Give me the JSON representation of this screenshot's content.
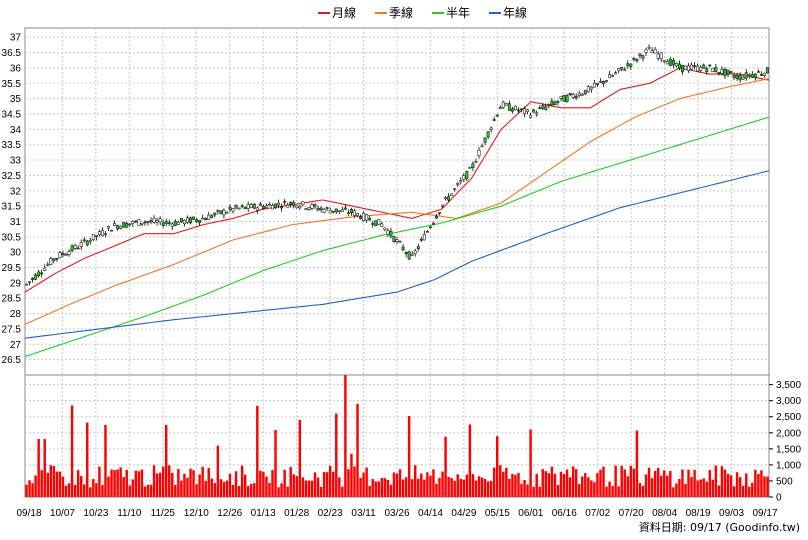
{
  "chart_data": {
    "type": "candlestick",
    "legend": [
      {
        "name": "月線",
        "color": "#e31a1c"
      },
      {
        "name": "季線",
        "color": "#f07820"
      },
      {
        "name": "半年",
        "color": "#22cc22"
      },
      {
        "name": "年線",
        "color": "#1f5fd0"
      }
    ],
    "legend_placement": "top-center",
    "grid": true,
    "price_axis": {
      "ylim": [
        26.0,
        37.3
      ],
      "ticks": [
        "37",
        "36.5",
        "36",
        "35.5",
        "35",
        "34.5",
        "34",
        "33.5",
        "33",
        "32.5",
        "32",
        "31.5",
        "31",
        "30.5",
        "30",
        "29.5",
        "29",
        "28.5",
        "28",
        "27.5",
        "27",
        "26.5"
      ]
    },
    "volume_axis": {
      "ylim": [
        0,
        3800
      ],
      "ticks": [
        "3,500",
        "3,000",
        "2,500",
        "2,000",
        "1,500",
        "1,000",
        "500",
        "0"
      ]
    },
    "x_ticks": [
      "09/18",
      "10/07",
      "10/23",
      "11/10",
      "11/25",
      "12/10",
      "12/26",
      "01/13",
      "01/28",
      "02/23",
      "03/11",
      "03/26",
      "04/14",
      "04/29",
      "05/15",
      "06/01",
      "06/16",
      "07/02",
      "07/20",
      "08/04",
      "08/19",
      "09/03",
      "09/17"
    ],
    "ma_lines": {
      "month": {
        "x": [
          0,
          0.04,
          0.08,
          0.12,
          0.16,
          0.2,
          0.24,
          0.28,
          0.32,
          0.36,
          0.4,
          0.44,
          0.48,
          0.52,
          0.56,
          0.6,
          0.64,
          0.68,
          0.72,
          0.76,
          0.8,
          0.84,
          0.88,
          0.92,
          0.96,
          1.0
        ],
        "y": [
          28.7,
          29.3,
          29.8,
          30.2,
          30.6,
          30.6,
          30.9,
          31.1,
          31.4,
          31.55,
          31.7,
          31.5,
          31.3,
          31.1,
          31.4,
          32.4,
          34.0,
          34.9,
          34.7,
          34.7,
          35.3,
          35.5,
          36.0,
          35.8,
          35.8,
          35.6
        ]
      },
      "quarter": {
        "x": [
          0,
          0.06,
          0.12,
          0.2,
          0.28,
          0.36,
          0.44,
          0.52,
          0.58,
          0.64,
          0.7,
          0.76,
          0.82,
          0.88,
          0.94,
          1.0
        ],
        "y": [
          27.65,
          28.3,
          28.9,
          29.6,
          30.4,
          30.9,
          31.15,
          31.3,
          31.1,
          31.6,
          32.6,
          33.6,
          34.4,
          35.0,
          35.35,
          35.65
        ]
      },
      "half": {
        "x": [
          0,
          0.08,
          0.16,
          0.24,
          0.32,
          0.4,
          0.48,
          0.56,
          0.64,
          0.72,
          0.8,
          0.88,
          0.94,
          1.0
        ],
        "y": [
          26.6,
          27.25,
          27.9,
          28.6,
          29.4,
          30.05,
          30.55,
          30.95,
          31.5,
          32.3,
          32.9,
          33.5,
          33.95,
          34.4
        ]
      },
      "year": {
        "x": [
          0,
          0.1,
          0.2,
          0.3,
          0.4,
          0.5,
          0.55,
          0.6,
          0.7,
          0.8,
          0.9,
          1.0
        ],
        "y": [
          27.2,
          27.5,
          27.8,
          28.05,
          28.3,
          28.7,
          29.1,
          29.7,
          30.6,
          31.45,
          32.05,
          32.65
        ]
      }
    },
    "candle_seed": {
      "x": [
        0,
        0.04,
        0.08,
        0.12,
        0.16,
        0.2,
        0.24,
        0.28,
        0.32,
        0.36,
        0.4,
        0.44,
        0.48,
        0.52,
        0.56,
        0.6,
        0.64,
        0.68,
        0.72,
        0.76,
        0.8,
        0.84,
        0.88,
        0.92,
        0.96,
        1.0
      ],
      "y": [
        28.9,
        29.8,
        30.3,
        30.85,
        31.0,
        30.95,
        31.1,
        31.4,
        31.5,
        31.6,
        31.4,
        31.3,
        30.9,
        29.8,
        31.5,
        32.7,
        34.8,
        34.5,
        34.95,
        35.3,
        35.9,
        36.6,
        36.0,
        36.0,
        35.7,
        35.9
      ]
    },
    "footer": "資料日期: 09/17 (Goodinfo.tw)"
  }
}
